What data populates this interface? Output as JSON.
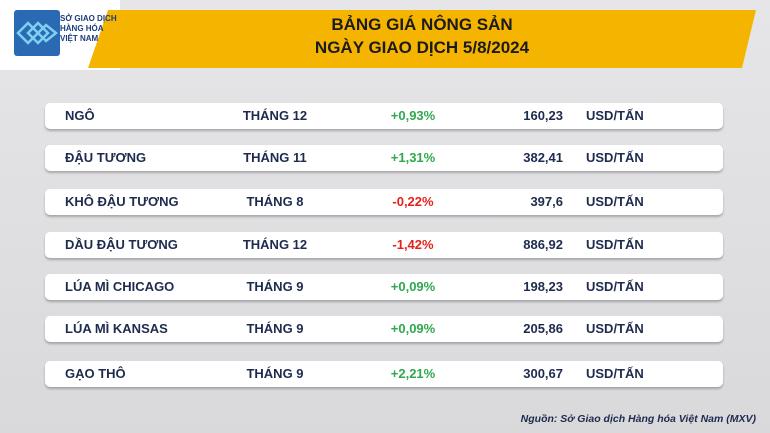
{
  "header": {
    "logo_lines": [
      "SỞ GIAO DỊCH",
      "HÀNG HÓA",
      "VIỆT NAM"
    ],
    "title": "BẢNG GIÁ NÔNG SẢN",
    "subtitle": "NGÀY GIAO DỊCH 5/8/2024"
  },
  "table": {
    "rows": [
      [
        "NGÔ",
        "THÁNG 12",
        "+0,93%",
        "160,23",
        "USD/TẤN"
      ],
      [
        "ĐẬU TƯƠNG",
        "THÁNG 11",
        "+1,31%",
        "382,41",
        "USD/TẤN"
      ],
      [
        "KHÔ ĐẬU TƯƠNG",
        "THÁNG 8",
        "-0,22%",
        "397,6",
        "USD/TẤN"
      ],
      [
        "DẦU ĐẬU TƯƠNG",
        "THÁNG 12",
        "-1,42%",
        "886,92",
        "USD/TẤN"
      ],
      [
        "LÚA MÌ CHICAGO",
        "THÁNG 9",
        "+0,09%",
        "198,23",
        "USD/TẤN"
      ],
      [
        "LÚA MÌ KANSAS",
        "THÁNG 9",
        "+0,09%",
        "205,86",
        "USD/TẤN"
      ],
      [
        "GẠO THÔ",
        "THÁNG 9",
        "+2,21%",
        "300,67",
        "USD/TẤN"
      ]
    ]
  },
  "footer": {
    "source": "Nguồn: Sở Giao dịch Hàng hóa Việt Nam (MXV)"
  }
}
